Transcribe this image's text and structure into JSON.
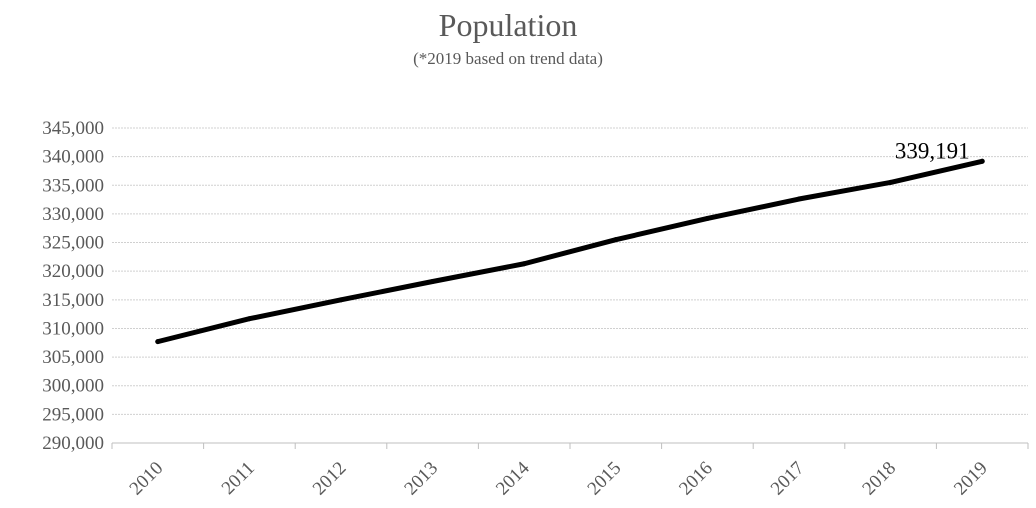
{
  "chart_data": {
    "type": "line",
    "title": "Population",
    "subtitle": "(*2019 based on trend data)",
    "xlabel": "",
    "ylabel": "",
    "categories": [
      "2010",
      "2011",
      "2012",
      "2013",
      "2014",
      "2015",
      "2016",
      "2017",
      "2018",
      "2019"
    ],
    "series": [
      {
        "values": [
          307700,
          311700,
          315000,
          318200,
          321300,
          325500,
          329200,
          332600,
          335500,
          339191
        ],
        "color": "#000000"
      }
    ],
    "ylim": [
      290000,
      345000
    ],
    "ytick_step": 5000,
    "ytick_labels": [
      "290,000",
      "295,000",
      "300,000",
      "305,000",
      "310,000",
      "315,000",
      "320,000",
      "325,000",
      "330,000",
      "335,000",
      "340,000",
      "345,000"
    ],
    "grid": true,
    "legend": "none",
    "annotations": [
      {
        "category": "2019",
        "text": "339,191"
      }
    ]
  }
}
